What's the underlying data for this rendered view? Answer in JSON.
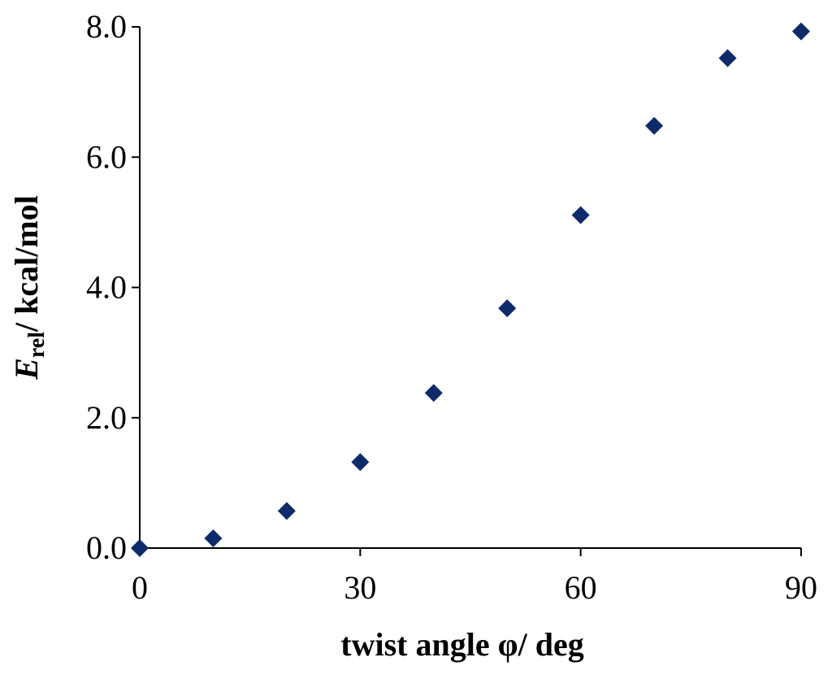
{
  "chart_data": {
    "type": "scatter",
    "xlabel": "twist angle φ/ deg",
    "ylabel_main": "E",
    "ylabel_sub": "rel",
    "ylabel_rest": "/ kcal/mol",
    "xlim": [
      0,
      90
    ],
    "ylim": [
      0,
      8
    ],
    "x_ticks": [
      0,
      30,
      60,
      90
    ],
    "x_tick_labels": [
      "0",
      "30",
      "60",
      "90"
    ],
    "y_ticks": [
      0,
      2,
      4,
      6,
      8
    ],
    "y_tick_labels": [
      "0.0",
      "2.0",
      "4.0",
      "6.0",
      "8.0"
    ],
    "grid": false,
    "marker": "diamond",
    "point_color": "#0d2a6b",
    "x": [
      0,
      10,
      20,
      30,
      40,
      50,
      60,
      70,
      80,
      90
    ],
    "y": [
      0.0,
      0.15,
      0.57,
      1.32,
      2.38,
      3.68,
      5.11,
      6.48,
      7.52,
      7.93
    ]
  }
}
